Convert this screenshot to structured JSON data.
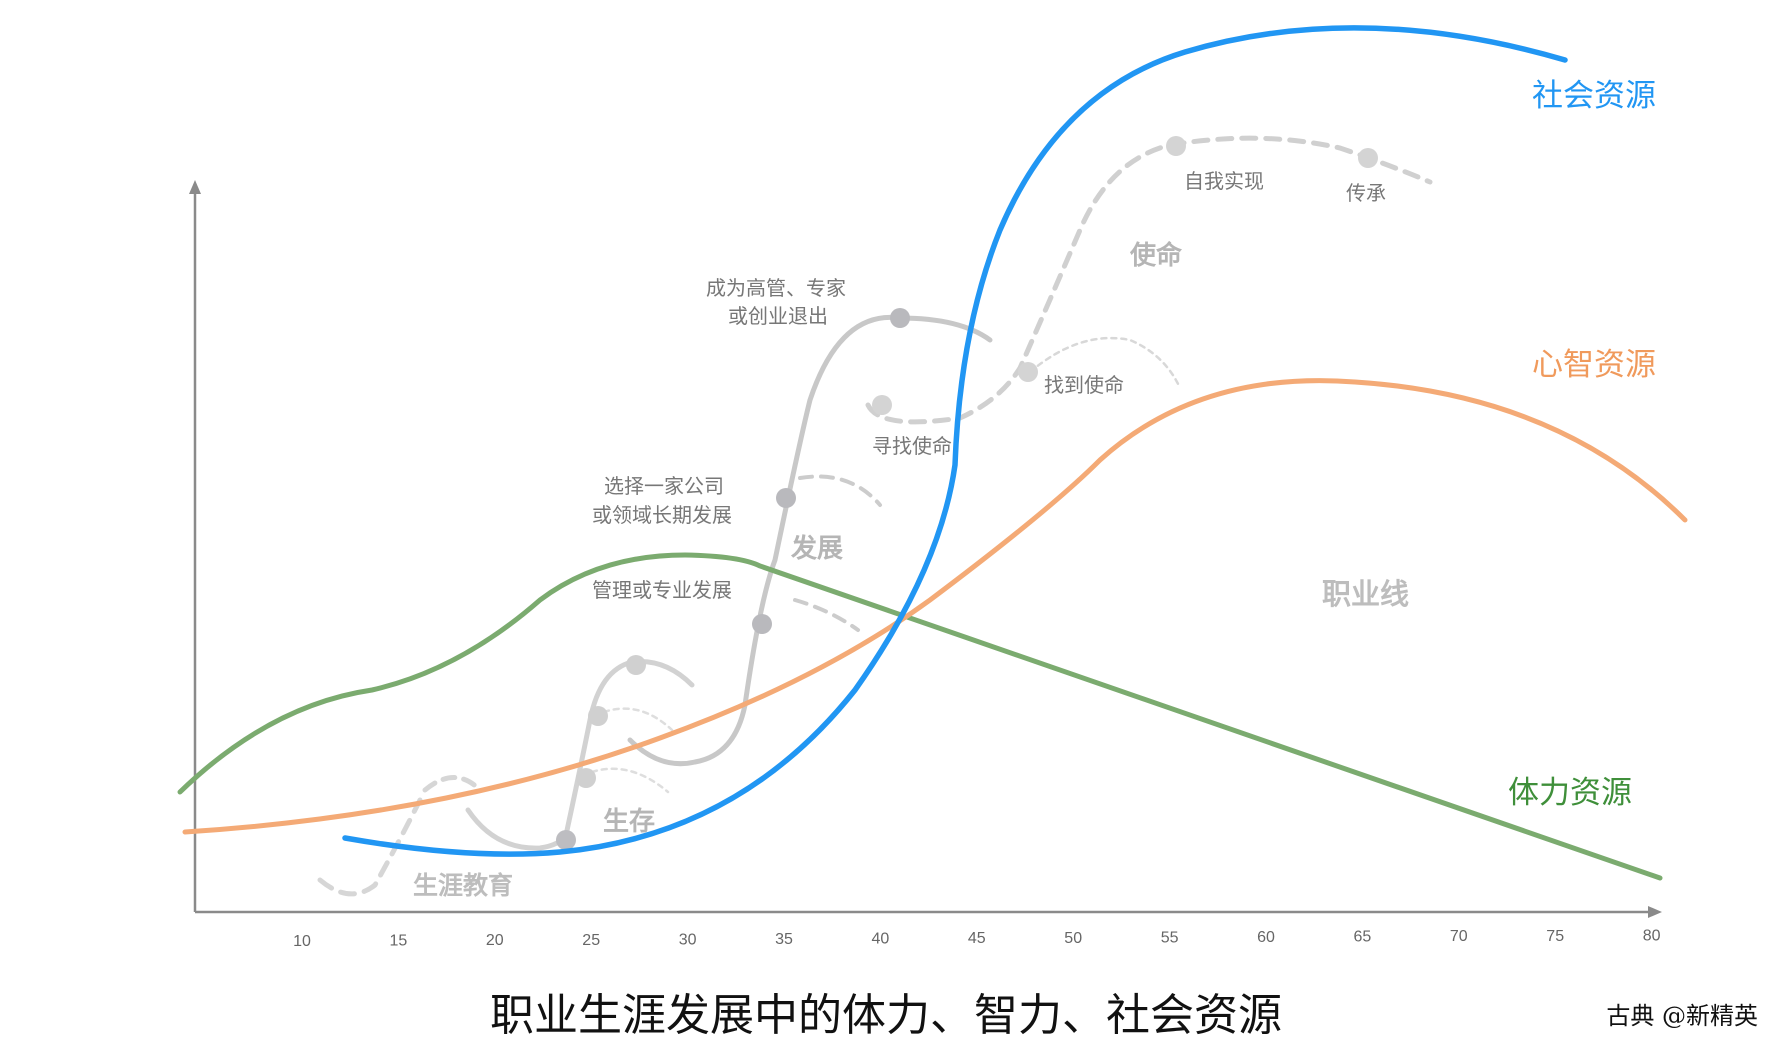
{
  "title": "职业生涯发展中的体力、智力、社会资源",
  "credit": "古典 @新精英",
  "x_axis": {
    "ticks": [
      "10",
      "15",
      "20",
      "25",
      "30",
      "35",
      "40",
      "45",
      "50",
      "55",
      "60",
      "65",
      "70",
      "75",
      "80"
    ]
  },
  "resources": {
    "social": {
      "label": "社会资源",
      "color": "#2196f3"
    },
    "mental": {
      "label": "心智资源",
      "color": "#f4aa76"
    },
    "physical": {
      "label": "体力资源",
      "color": "#7bab6f"
    }
  },
  "career_line_label": "职业线",
  "phases": {
    "education": "生涯教育",
    "survival": "生存",
    "development": "发展",
    "mission": "使命"
  },
  "milestones": {
    "management": "管理或专业发展",
    "choose_line1": "选择一家公司",
    "choose_line2": "或领域长期发展",
    "exec_line1": "成为高管、专家",
    "exec_line2": "或创业退出",
    "seek_mission": "寻找使命",
    "find_mission": "找到使命",
    "self_realization": "自我实现",
    "legacy": "传承"
  },
  "colors": {
    "axis": "#8a8a8a",
    "career_gray": "#c8c8c8",
    "dot": "#b9b9bd",
    "dot_light": "#d4d4d4"
  }
}
